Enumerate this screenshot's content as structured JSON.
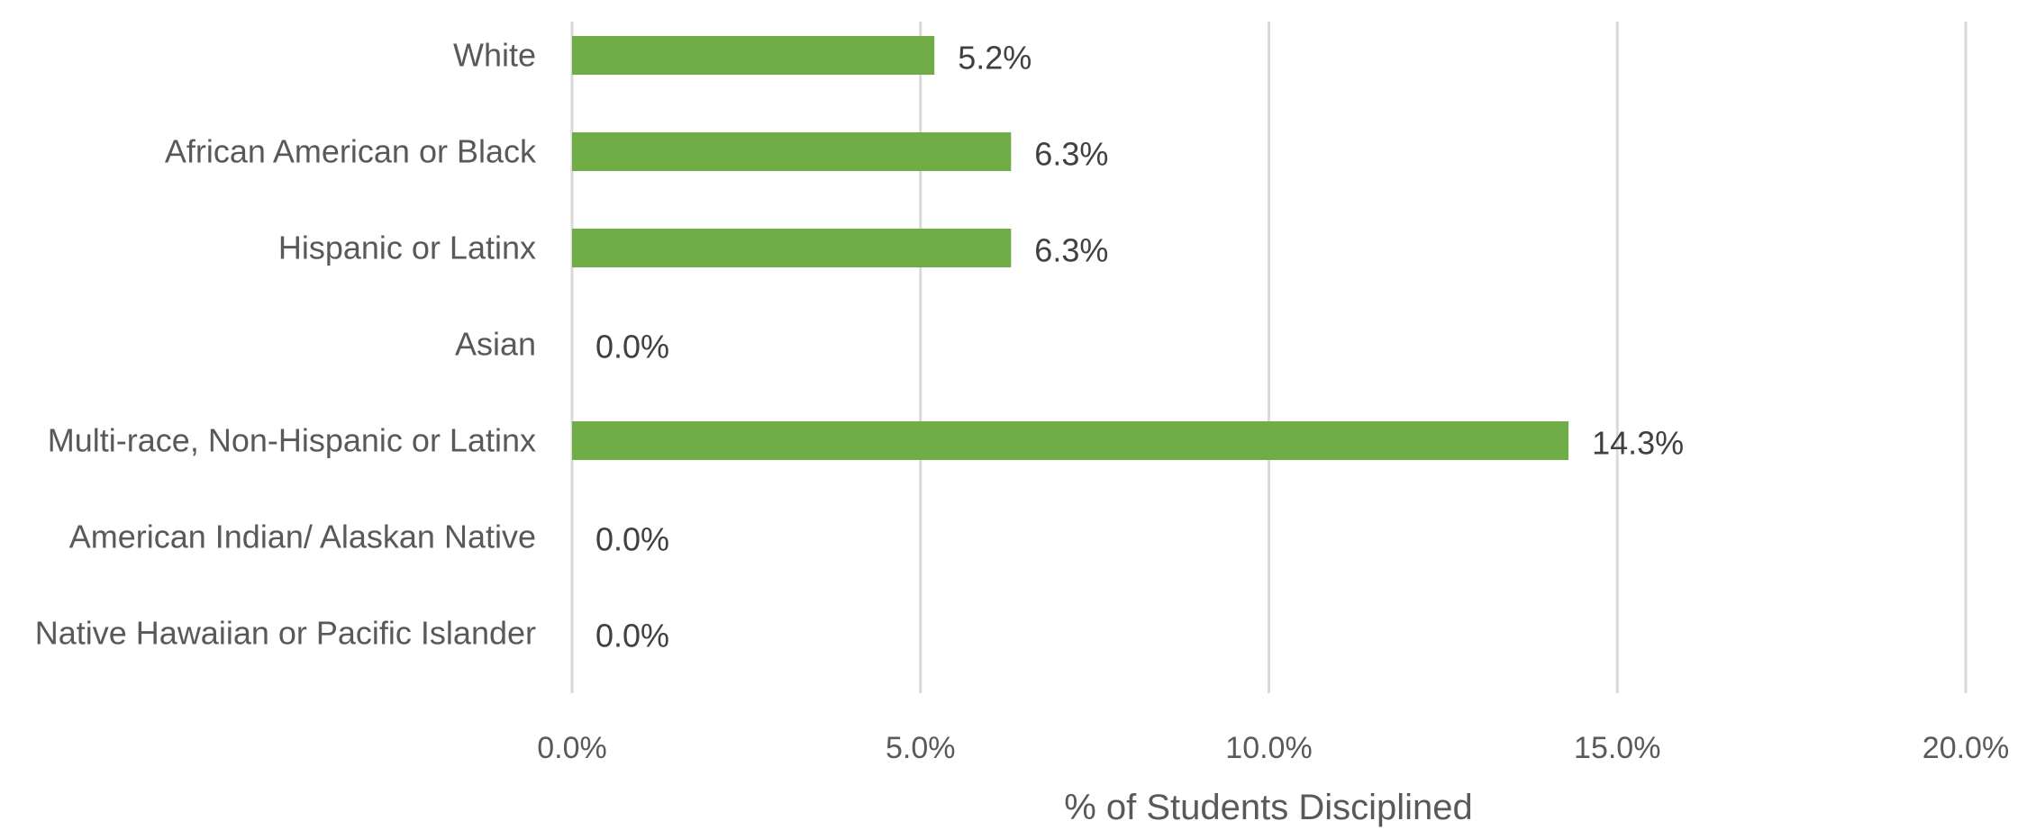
{
  "chart_data": {
    "type": "bar",
    "orientation": "horizontal",
    "categories": [
      "White",
      "African American or Black",
      "Hispanic or Latinx",
      "Asian",
      "Multi-race, Non-Hispanic or Latinx",
      "American Indian/ Alaskan Native",
      "Native Hawaiian or Pacific Islander"
    ],
    "values": [
      5.2,
      6.3,
      6.3,
      0.0,
      14.3,
      0.0,
      0.0
    ],
    "data_labels": [
      "5.2%",
      "6.3%",
      "6.3%",
      "0.0%",
      "14.3%",
      "0.0%",
      "0.0%"
    ],
    "xlabel": "% of Students Disciplined",
    "ylabel": "",
    "xlim": [
      0,
      20
    ],
    "x_ticks": [
      0,
      5,
      10,
      15,
      20
    ],
    "x_tick_labels": [
      "0.0%",
      "5.0%",
      "10.0%",
      "15.0%",
      "20.0%"
    ],
    "grid": "vertical",
    "legend": "none",
    "bar_color": "#70ad47"
  }
}
